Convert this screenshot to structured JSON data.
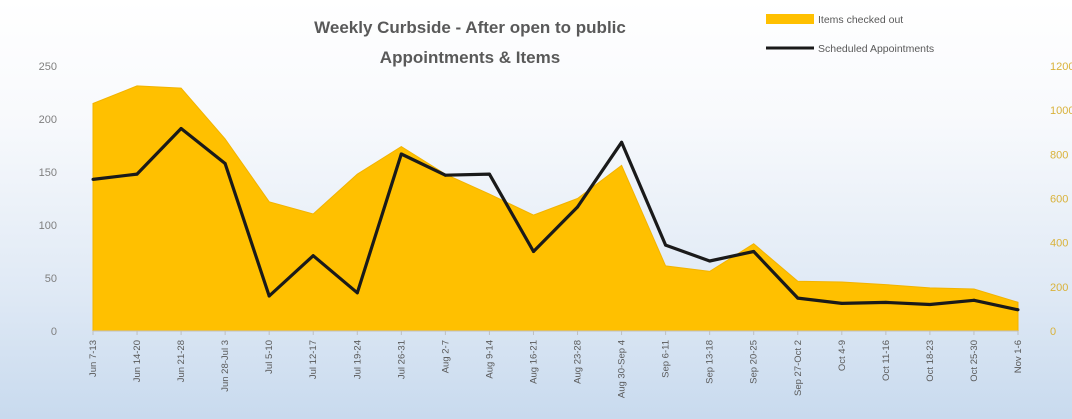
{
  "chart_data": {
    "type": "area",
    "title": "Weekly Curbside - After open to public",
    "subtitle": "Appointments & Items",
    "categories": [
      "Jun 7-13",
      "Jun 14-20",
      "Jun 21-28",
      "Jun 28-Jul 3",
      "Jul 5-10",
      "Jul 12-17",
      "Jul 19-24",
      "Jul 26-31",
      "Aug 2-7",
      "Aug 9-14",
      "Aug 16-21",
      "Aug 23-28",
      "Aug 30-Sep 4",
      "Sep 6-11",
      "Sep 13-18",
      "Sep 20-25",
      "Sep 27-Oct 2",
      "Oct 4-9",
      "Oct 11-16",
      "Oct 18-23",
      "Oct 25-30",
      "Nov 1-6"
    ],
    "series": [
      {
        "name": "Items checked out",
        "kind": "area",
        "axis": "right",
        "color": "#ffc000",
        "values": [
          1030,
          1110,
          1100,
          870,
          585,
          530,
          710,
          835,
          710,
          620,
          525,
          600,
          750,
          295,
          270,
          395,
          225,
          222,
          210,
          195,
          190,
          130
        ]
      },
      {
        "name": "Scheduled Appointments",
        "kind": "line",
        "axis": "left",
        "color": "#1a1a1a",
        "values": [
          143,
          148,
          191,
          158,
          33,
          71,
          36,
          167,
          147,
          148,
          75,
          117,
          178,
          81,
          66,
          75,
          31,
          26,
          27,
          25,
          29,
          20
        ]
      }
    ],
    "y_left": {
      "min": 0,
      "max": 250,
      "ticks": [
        0,
        50,
        100,
        150,
        200,
        250
      ]
    },
    "y_right": {
      "min": 0,
      "max": 1200,
      "ticks": [
        "0",
        "200",
        "400",
        "600",
        "800",
        "1000",
        "1200"
      ]
    },
    "grid": false,
    "legend_position": "top-right"
  }
}
